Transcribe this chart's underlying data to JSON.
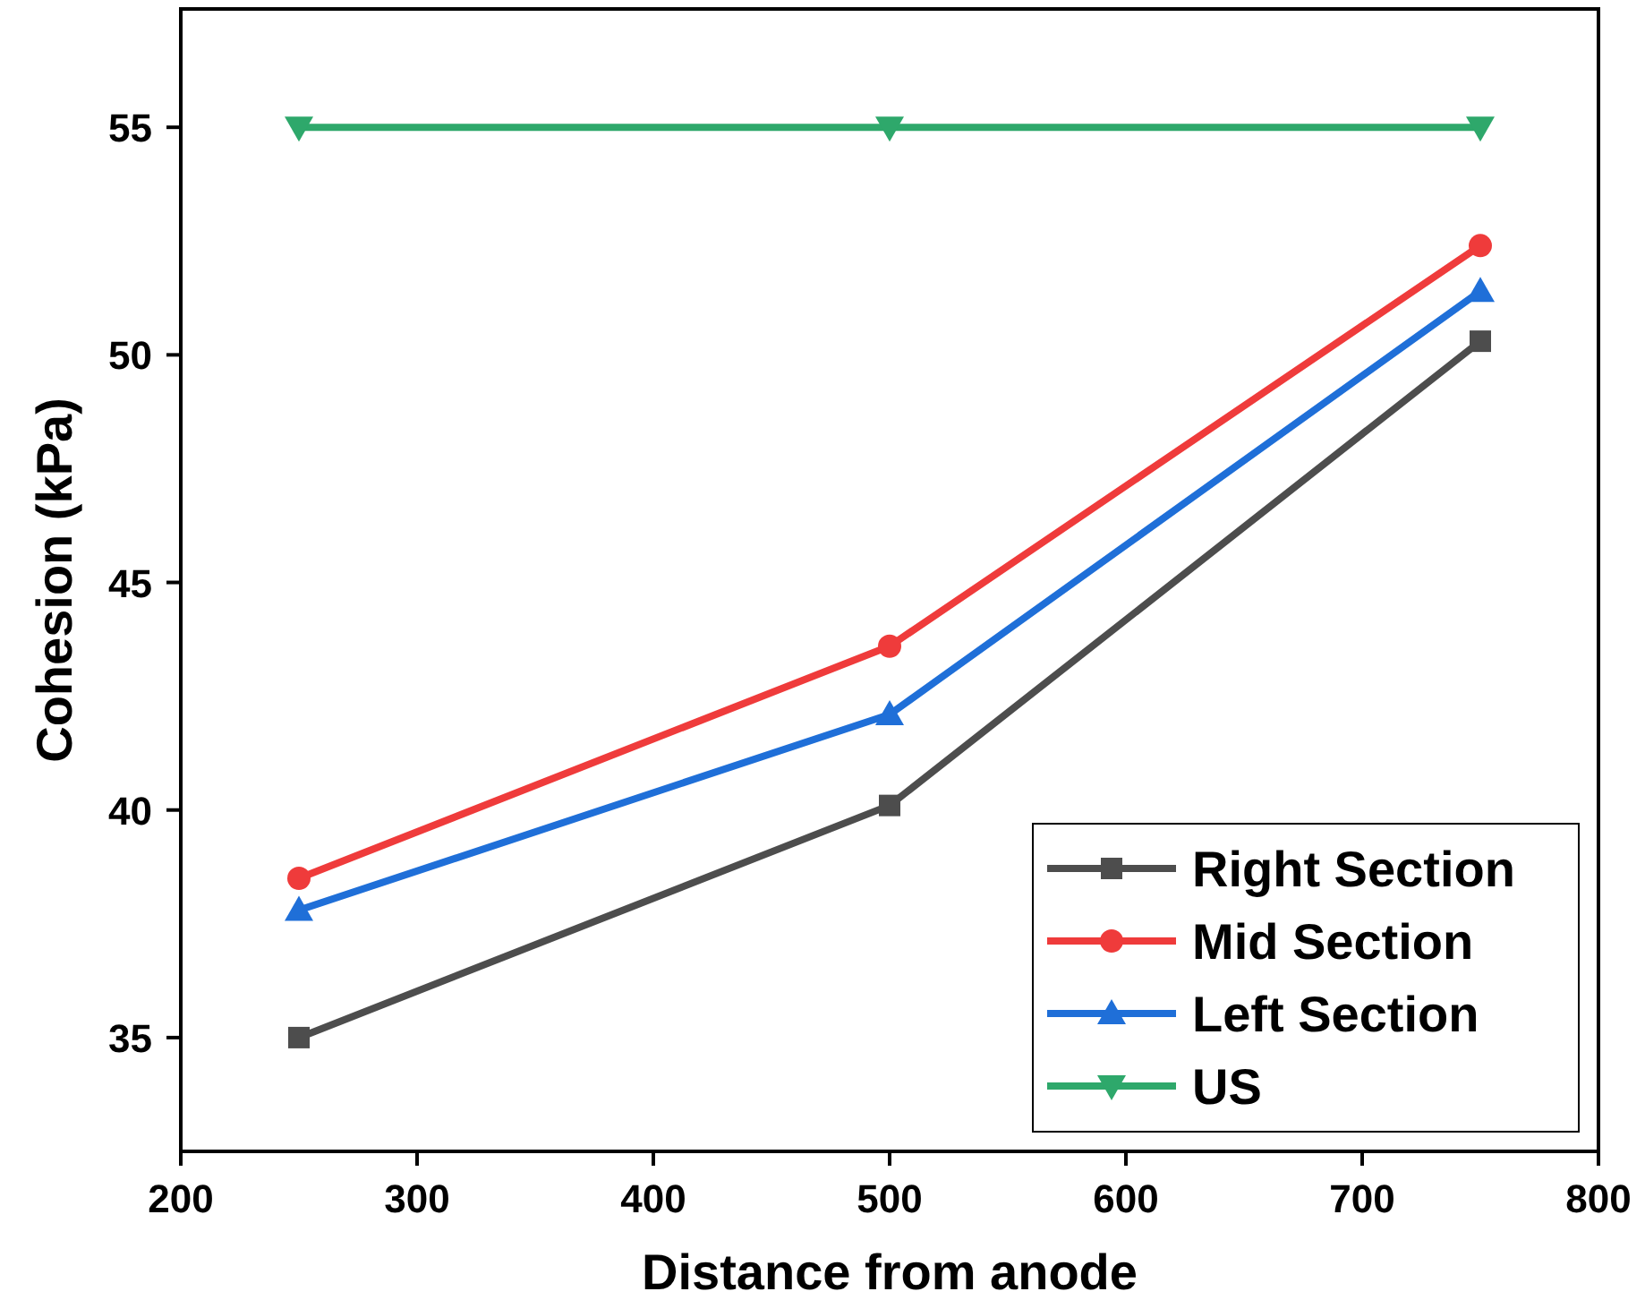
{
  "chart_data": {
    "type": "line",
    "xlabel": "Distance from anode",
    "ylabel": "Cohesion (kPa)",
    "x": [
      250,
      500,
      750
    ],
    "series": [
      {
        "name": "Right Section",
        "color": "#4d4d4d",
        "marker": "square",
        "values": [
          35.0,
          40.1,
          50.3
        ]
      },
      {
        "name": "Mid Section",
        "color": "#ef3b3b",
        "marker": "circle",
        "values": [
          38.5,
          43.6,
          52.4
        ]
      },
      {
        "name": "Left Section",
        "color": "#1f6fd8",
        "marker": "triangle",
        "values": [
          37.8,
          42.1,
          51.4
        ]
      },
      {
        "name": "US",
        "color": "#2ea86b",
        "marker": "triangle-down",
        "values": [
          55,
          55,
          55
        ]
      }
    ],
    "xlim": [
      200,
      800
    ],
    "xticks": [
      200,
      300,
      400,
      500,
      600,
      700,
      800
    ],
    "ylim": [
      32.5,
      57.6
    ],
    "yticks": [
      35,
      40,
      45,
      50,
      55
    ],
    "legend": "bottom right",
    "grid": false,
    "line_style": "solid"
  }
}
